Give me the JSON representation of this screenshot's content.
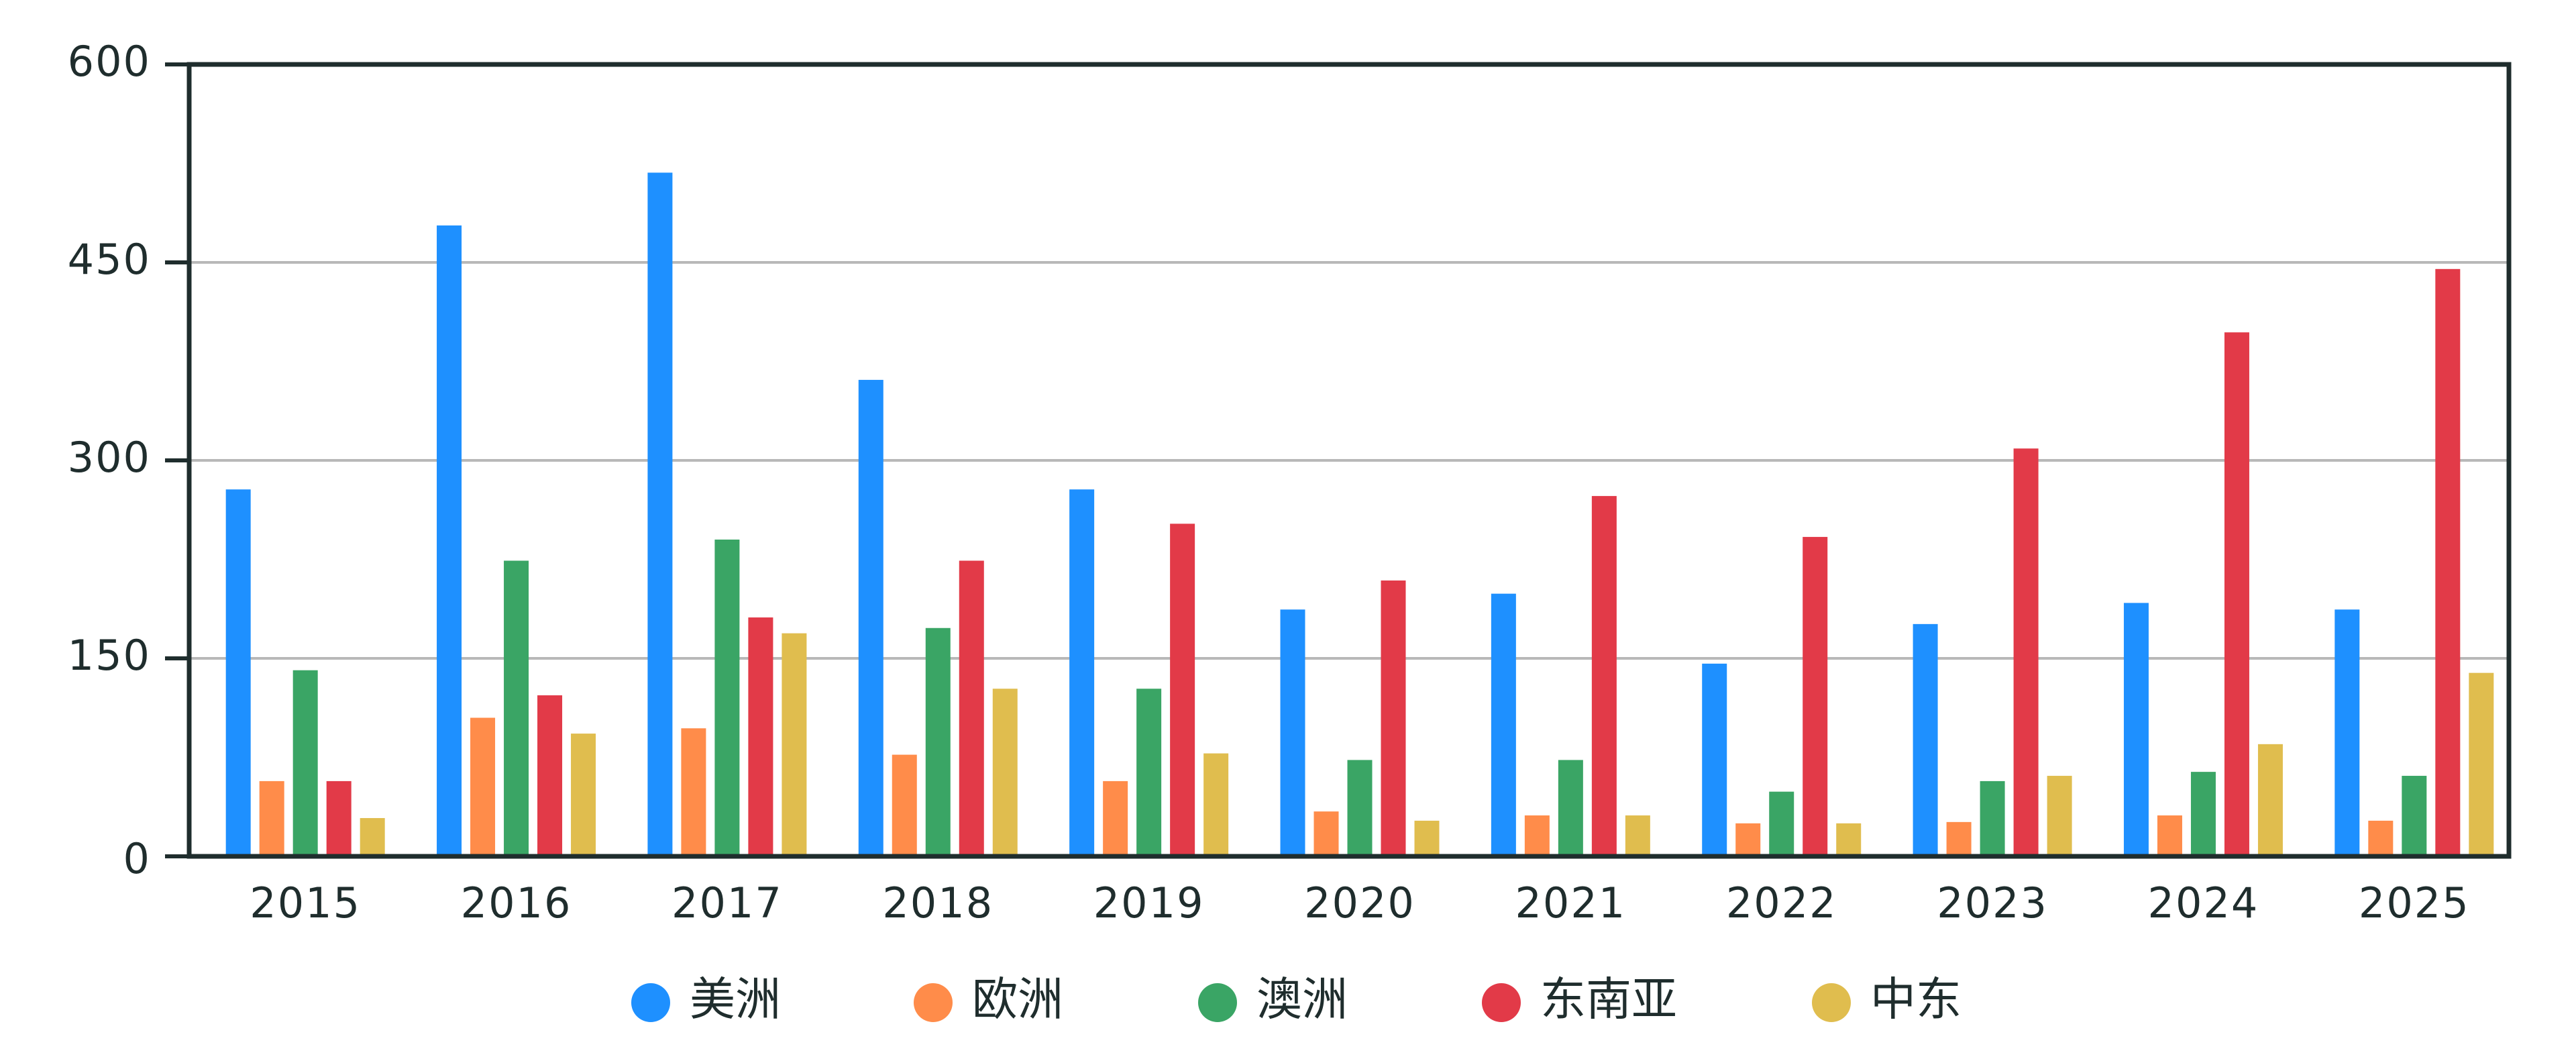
{
  "chart_data": {
    "type": "bar",
    "categories": [
      "2015",
      "2016",
      "2017",
      "2018",
      "2019",
      "2020",
      "2021",
      "2022",
      "2023",
      "2024",
      "2025"
    ],
    "series": [
      {
        "name": "美洲",
        "color": "#1e90ff",
        "values": [
          278,
          478,
          518,
          361,
          278,
          187,
          199,
          146,
          176,
          192,
          187
        ]
      },
      {
        "name": "欧洲",
        "color": "#ff8c4a",
        "values": [
          57,
          105,
          97,
          77,
          57,
          34,
          31,
          25,
          26,
          31,
          27
        ]
      },
      {
        "name": "澳洲",
        "color": "#3aa565",
        "values": [
          141,
          224,
          240,
          173,
          127,
          73,
          73,
          49,
          57,
          64,
          61
        ]
      },
      {
        "name": "东南亚",
        "color": "#e23a48",
        "values": [
          57,
          122,
          181,
          224,
          252,
          209,
          273,
          242,
          309,
          397,
          445
        ]
      },
      {
        "name": "中东",
        "color": "#e0bd4e",
        "values": [
          29,
          93,
          169,
          127,
          78,
          27,
          31,
          25,
          61,
          85,
          139
        ]
      }
    ],
    "ylim": [
      0,
      600
    ],
    "yticks": [
      0,
      150,
      300,
      450,
      600
    ],
    "grid": true,
    "legend": "bottom"
  }
}
